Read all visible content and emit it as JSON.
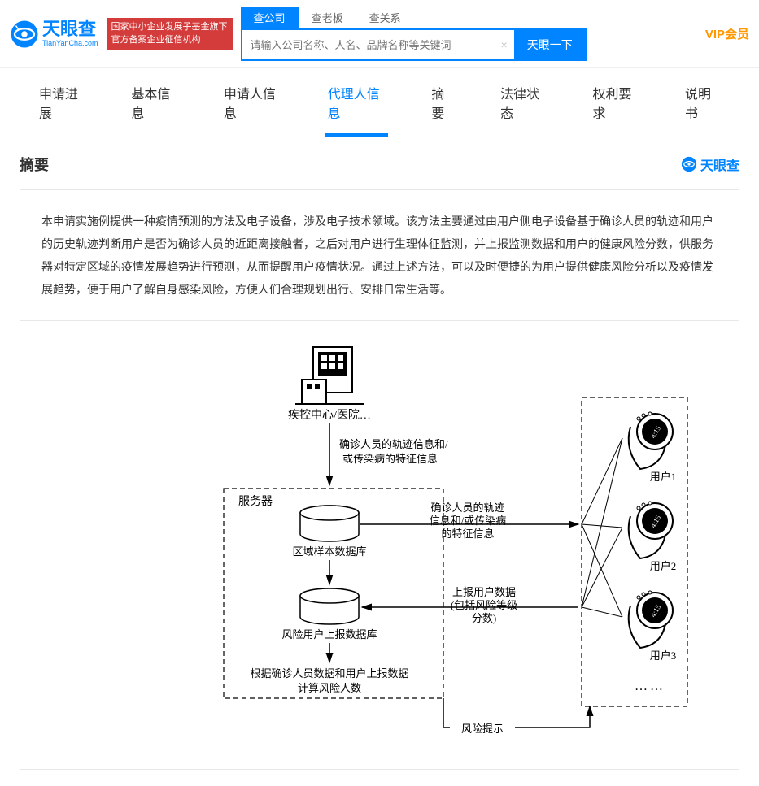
{
  "header": {
    "logo_name": "天眼查",
    "logo_domain": "TianYanCha.com",
    "red_line1": "国家中小企业发展子基金旗下",
    "red_line2": "官方备案企业征信机构",
    "search_tabs": [
      "查公司",
      "查老板",
      "查关系"
    ],
    "search_placeholder": "请输入公司名称、人名、品牌名称等关键词",
    "search_button": "天眼一下",
    "vip": "VIP会员"
  },
  "nav": {
    "tabs": [
      "申请进展",
      "基本信息",
      "申请人信息",
      "代理人信息",
      "摘要",
      "法律状态",
      "权利要求",
      "说明书"
    ],
    "active_index": 3
  },
  "section": {
    "title": "摘要",
    "watermark": "天眼查",
    "abstract": "本申请实施例提供一种疫情预测的方法及电子设备，涉及电子技术领域。该方法主要通过由用户侧电子设备基于确诊人员的轨迹和用户的历史轨迹判断用户是否为确诊人员的近距离接触者，之后对用户进行生理体征监测，并上报监测数据和用户的健康风险分数，供服务器对特定区域的疫情发展趋势进行预测，从而提醒用户疫情状况。通过上述方法，可以及时便捷的为用户提供健康风险分析以及疫情发展趋势，便于用户了解自身感染风险，方便人们合理规划出行、安排日常生活等。"
  },
  "diagram": {
    "font_family": "SimSun",
    "stroke": "#000000",
    "fill_bg": "#ffffff",
    "cdc_label": "疾控中心/医院…",
    "arrow1_line1": "确诊人员的轨迹信息和/",
    "arrow1_line2": "或传染病的特征信息",
    "server_box": "服务器",
    "db1": "区域样本数据库",
    "db2": "风险用户上报数据库",
    "calc_line1": "根据确诊人员数据和用户上报数据",
    "calc_line2": "计算风险人数",
    "mid1_line1": "确诊人员的轨迹",
    "mid1_line2": "信息和/或传染病",
    "mid1_line3": "的特征信息",
    "mid2_line1": "上报用户数据",
    "mid2_line2": "(包括风险等级",
    "mid2_line3": "分数)",
    "risk_hint": "风险提示",
    "users": [
      "用户1",
      "用户2",
      "用户3"
    ],
    "watch_time": "4:15"
  }
}
